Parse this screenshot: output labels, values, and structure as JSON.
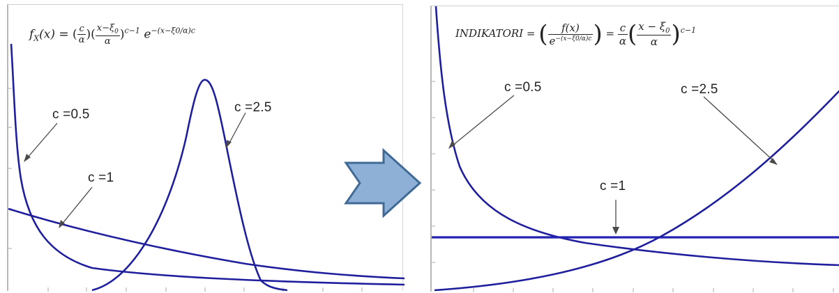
{
  "left_plot": {
    "formula_lhs": "f",
    "formula_sub": "X",
    "formula_arg": "(x) =",
    "formula_c": "c",
    "formula_alpha": "α",
    "formula_num": "x−ξ",
    "formula_num_sub": "0",
    "formula_exp": "c−1",
    "formula_e": "e",
    "formula_e_exp": "−(x−ξ0/α)c",
    "labels": {
      "c05": "c =0.5",
      "c1": "c =1",
      "c25": "c =2.5"
    }
  },
  "right_plot": {
    "formula_name": "INDIKATORI =",
    "formula_fx": "f(x)",
    "formula_den": "e",
    "formula_den_exp": "−(x−ξ0/α)c",
    "formula_eq": "=",
    "formula_c": "c",
    "formula_alpha": "α",
    "formula_num": "x − ξ",
    "formula_num_sub": "0",
    "formula_exp": "c−1",
    "labels": {
      "c05": "c =0.5",
      "c1": "c =1",
      "c25": "c =2.5"
    }
  },
  "colors": {
    "curve": "#1f1f9e",
    "arrow_fill": "#8fb0d6",
    "arrow_stroke": "#3f6a96"
  }
}
